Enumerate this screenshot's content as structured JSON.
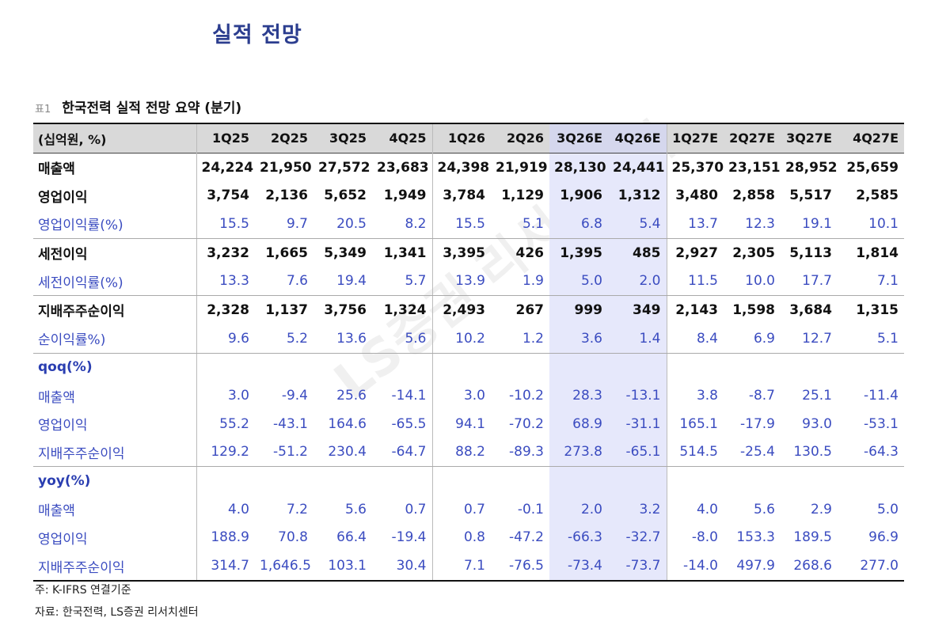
{
  "page": {
    "title": "실적 전망",
    "caption_prefix": "표1",
    "caption": "한국전력 실적 전망 요약 (분기)",
    "watermark": "LS증권 리서치센터",
    "footnote1": "주: K-IFRS 연결기준",
    "footnote2": "자료: 한국전력, LS증권 리서치센터"
  },
  "table": {
    "unit_label": "(십억원, %)",
    "columns": [
      "1Q25",
      "2Q25",
      "3Q25",
      "4Q25",
      "1Q26",
      "2Q26",
      "3Q26E",
      "4Q26E",
      "1Q27E",
      "2Q27E",
      "3Q27E",
      "4Q27E"
    ],
    "rows": [
      {
        "label": "매출액",
        "values": [
          "24,224",
          "21,950",
          "27,572",
          "23,683",
          "24,398",
          "21,919",
          "28,130",
          "24,441",
          "25,370",
          "23,151",
          "28,952",
          "25,659"
        ]
      },
      {
        "label": "영업이익",
        "values": [
          "3,754",
          "2,136",
          "5,652",
          "1,949",
          "3,784",
          "1,129",
          "1,906",
          "1,312",
          "3,480",
          "2,858",
          "5,517",
          "2,585"
        ]
      },
      {
        "label": "영업이익률(%)",
        "values": [
          "15.5",
          "9.7",
          "20.5",
          "8.2",
          "15.5",
          "5.1",
          "6.8",
          "5.4",
          "13.7",
          "12.3",
          "19.1",
          "10.1"
        ]
      },
      {
        "label": "세전이익",
        "values": [
          "3,232",
          "1,665",
          "5,349",
          "1,341",
          "3,395",
          "426",
          "1,395",
          "485",
          "2,927",
          "2,305",
          "5,113",
          "1,814"
        ]
      },
      {
        "label": "세전이익률(%)",
        "values": [
          "13.3",
          "7.6",
          "19.4",
          "5.7",
          "13.9",
          "1.9",
          "5.0",
          "2.0",
          "11.5",
          "10.0",
          "17.7",
          "7.1"
        ]
      },
      {
        "label": "지배주주순이익",
        "values": [
          "2,328",
          "1,137",
          "3,756",
          "1,324",
          "2,493",
          "267",
          "999",
          "349",
          "2,143",
          "1,598",
          "3,684",
          "1,315"
        ]
      },
      {
        "label": "순이익률%)",
        "values": [
          "9.6",
          "5.2",
          "13.6",
          "5.6",
          "10.2",
          "1.2",
          "3.6",
          "1.4",
          "8.4",
          "6.9",
          "12.7",
          "5.1"
        ]
      },
      {
        "label": "qoq(%)",
        "values": [
          "",
          "",
          "",
          "",
          "",
          "",
          "",
          "",
          "",
          "",
          "",
          ""
        ]
      },
      {
        "label": "매출액",
        "values": [
          "3.0",
          "-9.4",
          "25.6",
          "-14.1",
          "3.0",
          "-10.2",
          "28.3",
          "-13.1",
          "3.8",
          "-8.7",
          "25.1",
          "-11.4"
        ]
      },
      {
        "label": "영업이익",
        "values": [
          "55.2",
          "-43.1",
          "164.6",
          "-65.5",
          "94.1",
          "-70.2",
          "68.9",
          "-31.1",
          "165.1",
          "-17.9",
          "93.0",
          "-53.1"
        ]
      },
      {
        "label": "지배주주순이익",
        "values": [
          "129.2",
          "-51.2",
          "230.4",
          "-64.7",
          "88.2",
          "-89.3",
          "273.8",
          "-65.1",
          "514.5",
          "-25.4",
          "130.5",
          "-64.3"
        ]
      },
      {
        "label": "yoy(%)",
        "values": [
          "",
          "",
          "",
          "",
          "",
          "",
          "",
          "",
          "",
          "",
          "",
          ""
        ]
      },
      {
        "label": "매출액",
        "values": [
          "4.0",
          "7.2",
          "5.6",
          "0.7",
          "0.7",
          "-0.1",
          "2.0",
          "3.2",
          "4.0",
          "5.6",
          "2.9",
          "5.0"
        ]
      },
      {
        "label": "영업이익",
        "values": [
          "188.9",
          "70.8",
          "66.4",
          "-19.4",
          "0.8",
          "-47.2",
          "-66.3",
          "-32.7",
          "-8.0",
          "153.3",
          "189.5",
          "96.9"
        ]
      },
      {
        "label": "지배주주순이익",
        "values": [
          "314.7",
          "1,646.5",
          "103.1",
          "30.4",
          "7.1",
          "-76.5",
          "-73.4",
          "-73.7",
          "-14.0",
          "497.9",
          "268.6",
          "277.0"
        ]
      }
    ]
  }
}
